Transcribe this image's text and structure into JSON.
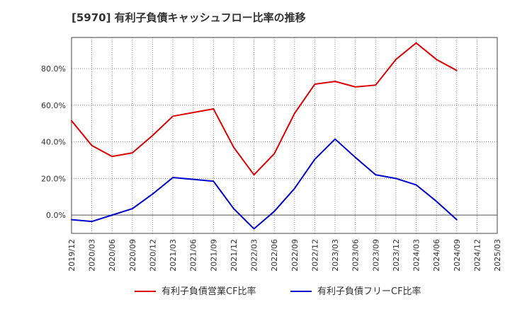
{
  "chart_data": {
    "type": "line",
    "title": "[5970]  有利子負債キャッシュフロー比率の推移",
    "xlabel": "",
    "ylabel": "",
    "ylim": [
      -10,
      97
    ],
    "yticks": [
      0,
      20,
      40,
      60,
      80
    ],
    "ytick_labels": [
      "0.0%",
      "20.0%",
      "40.0%",
      "60.0%",
      "80.0%"
    ],
    "categories": [
      "2019/12",
      "2020/03",
      "2020/06",
      "2020/09",
      "2020/12",
      "2021/03",
      "2021/06",
      "2021/09",
      "2021/12",
      "2022/03",
      "2022/06",
      "2022/09",
      "2022/12",
      "2023/03",
      "2023/06",
      "2023/09",
      "2023/12",
      "2024/03",
      "2024/06",
      "2024/09",
      "2024/12",
      "2025/03"
    ],
    "grid": true,
    "legend_position": "bottom",
    "series": [
      {
        "name": "有利子負債営業CF比率",
        "color": "#dd0000",
        "values": [
          51.5,
          38,
          32,
          34,
          43.5,
          54,
          56,
          58,
          37,
          22,
          33.5,
          55.5,
          71.5,
          73,
          70,
          71,
          85,
          94,
          85,
          79,
          null,
          null
        ]
      },
      {
        "name": "有利子負債フリーCF比率",
        "color": "#0000cc",
        "values": [
          -2.5,
          -3.5,
          0,
          3.5,
          11.5,
          20.5,
          19.5,
          18.5,
          3.5,
          -7.5,
          2,
          14.5,
          30.5,
          41.5,
          31.5,
          22,
          20,
          16.5,
          7.5,
          -2.5,
          null,
          null
        ]
      }
    ]
  }
}
